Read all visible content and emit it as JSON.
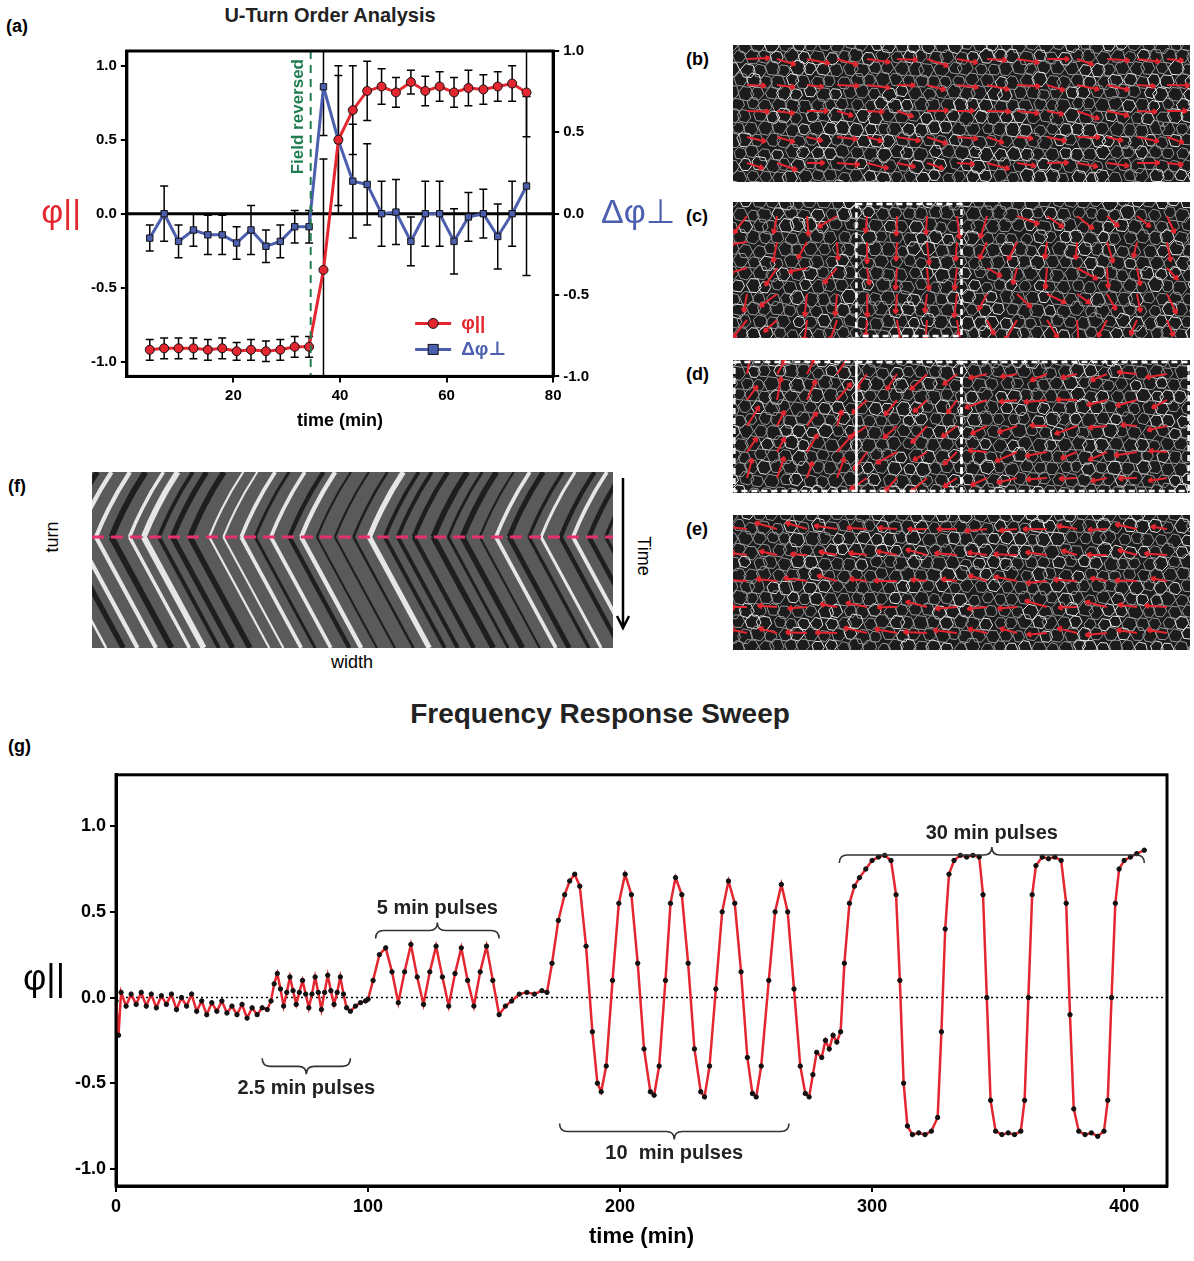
{
  "chart_data": [
    {
      "type": "line",
      "panel_label": "(a)",
      "title": "U-Turn Order Analysis",
      "x_label": "time (min)",
      "y_label": "φ||",
      "y2_label": "Δφ⊥",
      "x": [
        4.3,
        7,
        9.7,
        12.5,
        15.2,
        17.9,
        20.6,
        23.3,
        26.1,
        28.8,
        31.5,
        34.2,
        36.9,
        39.7,
        42.4,
        45.1,
        47.8,
        50.5,
        53.3,
        56,
        58.7,
        61.4,
        64.1,
        66.9,
        69.6,
        72.3,
        75
      ],
      "xlim": [
        0,
        80
      ],
      "xticks": [
        20,
        40,
        60,
        80
      ],
      "ylim": [
        -1.1,
        1.1
      ],
      "yticks": [
        {
          "value": -1,
          "label": "-1.0"
        },
        -0.5,
        {
          "value": 0,
          "label": "0.0"
        },
        0.5,
        {
          "value": 1,
          "label": "1.0"
        }
      ],
      "y2lim": [
        -1,
        1
      ],
      "y2ticks": [
        {
          "value": -1,
          "label": "-1.0"
        },
        -0.5,
        {
          "value": 0,
          "label": "0.0"
        },
        0.5,
        {
          "value": 1,
          "label": "1.0"
        }
      ],
      "grid": false,
      "legend": "lower right",
      "series": [
        {
          "name": "φ||",
          "color": "#e3262f",
          "marker": "circle",
          "values": [
            -0.92,
            -0.91,
            -0.91,
            -0.91,
            -0.92,
            -0.91,
            -0.93,
            -0.92,
            -0.93,
            -0.92,
            -0.9,
            -0.9,
            -0.38,
            0.5,
            0.7,
            0.83,
            0.86,
            0.82,
            0.89,
            0.83,
            0.86,
            0.82,
            0.85,
            0.84,
            0.86,
            0.88,
            0.82
          ],
          "errors": [
            0.07,
            0.07,
            0.07,
            0.07,
            0.07,
            0.07,
            0.06,
            0.07,
            0.07,
            0.07,
            0.07,
            0.07,
            0.75,
            0.5,
            0.3,
            0.2,
            0.12,
            0.1,
            0.08,
            0.1,
            0.1,
            0.1,
            0.12,
            0.1,
            0.1,
            0.12,
            0.3
          ]
        },
        {
          "name": "Δφ⊥",
          "color": "#4b5fae",
          "marker": "square",
          "axis": "y2",
          "values": [
            -0.15,
            0.0,
            -0.17,
            -0.1,
            -0.13,
            -0.13,
            -0.18,
            -0.1,
            -0.2,
            -0.17,
            -0.08,
            -0.08,
            0.78,
            0.45,
            0.2,
            0.18,
            0.0,
            0.01,
            -0.17,
            0.0,
            0.0,
            -0.17,
            -0.02,
            0.0,
            -0.14,
            0.0,
            0.17
          ],
          "errors": [
            0.08,
            0.17,
            0.1,
            0.1,
            0.12,
            0.12,
            0.1,
            0.15,
            0.1,
            0.1,
            0.1,
            0.1,
            0.3,
            0.4,
            0.35,
            0.25,
            0.2,
            0.2,
            0.15,
            0.2,
            0.2,
            0.2,
            0.15,
            0.15,
            0.2,
            0.2,
            0.55
          ]
        }
      ],
      "annotations": [
        {
          "text": "Field reversed",
          "x": 34.5,
          "color": "#1f7d4f",
          "line_style": "dashed"
        }
      ]
    },
    {
      "type": "line",
      "panel_label": "(g)",
      "title": "Frequency Response Sweep",
      "x_label": "time (min)",
      "y_label": "φ||",
      "x": [
        0,
        1,
        2,
        4,
        6,
        8,
        10,
        12,
        14,
        16,
        18,
        20,
        22,
        24,
        26,
        28,
        30,
        32,
        34,
        36,
        38,
        40,
        42,
        44,
        46,
        48,
        50,
        52,
        54,
        56,
        58,
        60,
        61.5,
        62.75,
        64,
        65.25,
        66.5,
        67.75,
        69,
        70.25,
        71.5,
        72.75,
        74,
        75.25,
        76.5,
        77.75,
        79,
        80.25,
        81.5,
        82.75,
        84,
        85.25,
        86.5,
        87.75,
        89,
        90.25,
        91.5,
        93,
        95,
        97,
        99,
        100,
        102,
        104.5,
        107,
        109.5,
        112,
        114.5,
        117,
        119.5,
        122,
        124.5,
        127,
        129.5,
        132,
        134.5,
        137,
        139.5,
        142,
        144.5,
        147,
        149.5,
        152,
        154.5,
        157,
        160,
        163,
        166,
        169,
        171,
        173,
        175.5,
        178,
        180,
        182,
        184,
        186.5,
        189,
        191,
        192.5,
        194.5,
        197,
        199.5,
        202,
        204.5,
        207,
        209.5,
        212,
        213.5,
        215.5,
        218,
        220,
        222,
        224.5,
        227,
        229.5,
        232,
        233.5,
        235.5,
        238,
        240.5,
        243,
        245.5,
        248,
        250.5,
        252.5,
        254,
        256,
        259,
        261.5,
        264,
        266.5,
        269,
        271.5,
        273.5,
        275,
        276.5,
        278,
        280,
        281.5,
        283,
        284.5,
        286,
        287.5,
        289,
        291,
        293,
        295,
        297.5,
        300,
        302.5,
        305,
        307.5,
        309.5,
        311,
        312.5,
        314,
        316,
        318.5,
        321,
        323.5,
        326,
        327.5,
        329,
        330.5,
        332.5,
        335,
        337.5,
        340,
        342.5,
        344,
        345.5,
        347,
        349,
        351.5,
        354,
        356.5,
        359,
        360.5,
        362,
        363.5,
        365,
        367.5,
        370,
        372.5,
        375,
        377,
        378.5,
        380,
        382,
        384.5,
        387,
        389.5,
        392,
        393.5,
        395,
        396.5,
        398,
        400,
        402.5,
        405,
        408
      ],
      "values": [
        -0.02,
        -0.22,
        0.03,
        -0.05,
        0.02,
        -0.04,
        0.03,
        -0.05,
        0.02,
        -0.06,
        0.01,
        -0.04,
        0.02,
        -0.07,
        0.0,
        -0.05,
        0.02,
        -0.08,
        -0.02,
        -0.1,
        -0.03,
        -0.08,
        -0.02,
        -0.09,
        -0.05,
        -0.1,
        -0.04,
        -0.12,
        -0.06,
        -0.1,
        -0.06,
        -0.07,
        -0.02,
        0.08,
        0.14,
        0.05,
        -0.05,
        0.03,
        0.12,
        0.04,
        -0.04,
        0.03,
        0.1,
        0.02,
        -0.06,
        0.02,
        0.12,
        0.03,
        -0.07,
        0.03,
        0.13,
        0.04,
        -0.04,
        0.03,
        0.12,
        0.02,
        -0.06,
        -0.08,
        -0.05,
        -0.03,
        -0.02,
        -0.01,
        0.1,
        0.25,
        0.29,
        0.15,
        -0.03,
        0.15,
        0.31,
        0.12,
        -0.04,
        0.15,
        0.3,
        0.12,
        -0.05,
        0.14,
        0.29,
        0.1,
        -0.05,
        0.15,
        0.3,
        0.1,
        -0.1,
        -0.05,
        -0.02,
        0.02,
        0.03,
        0.02,
        0.04,
        0.03,
        0.2,
        0.45,
        0.6,
        0.68,
        0.72,
        0.65,
        0.3,
        -0.2,
        -0.5,
        -0.55,
        -0.4,
        0.1,
        0.55,
        0.72,
        0.6,
        0.2,
        -0.3,
        -0.55,
        -0.57,
        -0.4,
        0.1,
        0.55,
        0.7,
        0.6,
        0.2,
        -0.3,
        -0.55,
        -0.58,
        -0.4,
        0.05,
        0.5,
        0.68,
        0.55,
        0.15,
        -0.35,
        -0.56,
        -0.58,
        -0.4,
        0.1,
        0.5,
        0.66,
        0.5,
        0.05,
        -0.4,
        -0.56,
        -0.58,
        -0.45,
        -0.32,
        -0.35,
        -0.25,
        -0.3,
        -0.22,
        -0.26,
        -0.2,
        0.2,
        0.55,
        0.65,
        0.7,
        0.75,
        0.8,
        0.82,
        0.83,
        0.8,
        0.6,
        0.1,
        -0.5,
        -0.75,
        -0.8,
        -0.79,
        -0.8,
        -0.78,
        -0.7,
        -0.2,
        0.4,
        0.72,
        0.8,
        0.83,
        0.82,
        0.83,
        0.82,
        0.6,
        0.0,
        -0.6,
        -0.78,
        -0.8,
        -0.79,
        -0.8,
        -0.78,
        -0.6,
        0.0,
        0.6,
        0.77,
        0.82,
        0.81,
        0.82,
        0.8,
        0.55,
        -0.1,
        -0.65,
        -0.78,
        -0.8,
        -0.79,
        -0.81,
        -0.78,
        -0.6,
        0.0,
        0.55,
        0.75,
        0.8,
        0.82,
        0.84,
        0.86
      ],
      "color": "#e3262f",
      "marker": "circle",
      "xlim": [
        0,
        417
      ],
      "xticks": [
        0,
        100,
        200,
        300,
        400
      ],
      "ylim": [
        -1.1,
        1.3
      ],
      "yticks": [
        {
          "value": -1,
          "label": "-1.0"
        },
        -0.5,
        {
          "value": 0,
          "label": "0.0"
        },
        0.5,
        {
          "value": 1,
          "label": "1.0"
        }
      ],
      "grid": false,
      "annotations": [
        {
          "text": "2.5 min pulses",
          "x_range": [
            58,
            93
          ],
          "y": -0.53
        },
        {
          "text": "5 min pulses",
          "x_range": [
            103,
            152
          ],
          "y": 0.52
        },
        {
          "text": "10  min pulses",
          "x_range": [
            176,
            267
          ],
          "y": -0.91
        },
        {
          "text": "30 min pulses",
          "x_range": [
            287,
            408
          ],
          "y": 0.96
        }
      ]
    }
  ],
  "images": [
    {
      "label": "(b)"
    },
    {
      "label": "(c)"
    },
    {
      "label": "(d)"
    },
    {
      "label": "(e)"
    }
  ],
  "kymograph": {
    "label": "(f)",
    "turn_label": "turn",
    "time_label": "Time",
    "width_label": "width"
  }
}
